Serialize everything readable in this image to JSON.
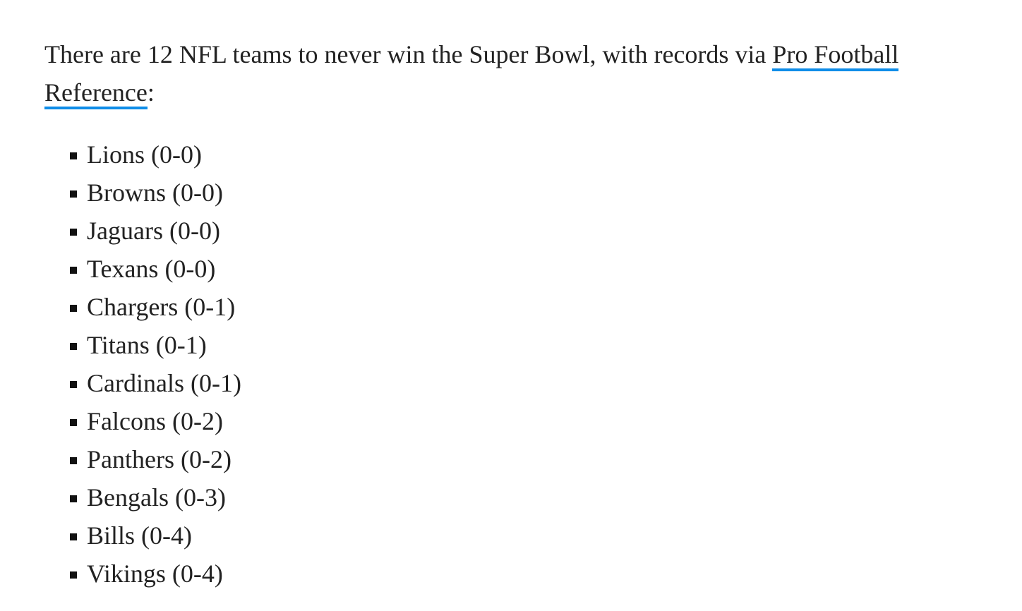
{
  "intro": {
    "text_before": "There are 12 NFL teams to never win the Super Bowl, with records via ",
    "link_text": "Pro Football Reference",
    "text_after": ":",
    "link_underline_color": "#0f8de8"
  },
  "teams": [
    "Lions (0-0)",
    "Browns (0-0)",
    "Jaguars (0-0)",
    "Texans (0-0)",
    "Chargers (0-1)",
    "Titans (0-1)",
    "Cardinals (0-1)",
    "Falcons (0-2)",
    "Panthers (0-2)",
    "Bengals (0-3)",
    "Bills (0-4)",
    "Vikings (0-4)"
  ]
}
